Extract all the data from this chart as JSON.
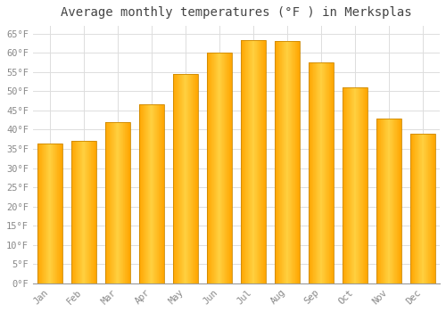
{
  "title": "Average monthly temperatures (°F ) in Merksplas",
  "months": [
    "Jan",
    "Feb",
    "Mar",
    "Apr",
    "May",
    "Jun",
    "Jul",
    "Aug",
    "Sep",
    "Oct",
    "Nov",
    "Dec"
  ],
  "values": [
    36.5,
    37.2,
    42.0,
    46.5,
    54.5,
    60.0,
    63.2,
    63.0,
    57.5,
    51.0,
    43.0,
    39.0
  ],
  "bar_color_left": "#FFA500",
  "bar_color_center": "#FFD040",
  "bar_color_right": "#FFA500",
  "bar_edge_color": "#CC8800",
  "ylim": [
    0,
    67
  ],
  "ytick_step": 5,
  "background_color": "#FFFFFF",
  "grid_color": "#DDDDDD",
  "title_fontsize": 10,
  "tick_fontsize": 7.5,
  "title_color": "#444444",
  "tick_color": "#999999",
  "tick_label_color": "#888888"
}
